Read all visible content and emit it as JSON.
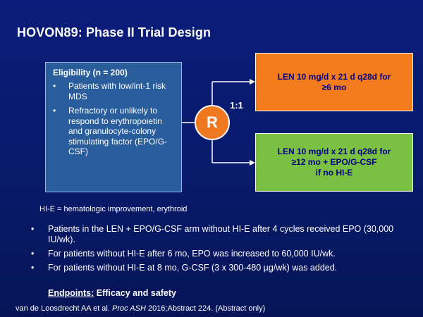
{
  "slide": {
    "title": "HOVON89: Phase II Trial Design",
    "eligibility": {
      "heading": "Eligibility (n = 200)",
      "bullet_char": "•",
      "items": [
        "Patients with low/int-1 risk MDS",
        "Refractory or unlikely to respond to erythropoietin and granulocyte-colony stimulating factor (EPO/G-CSF)"
      ]
    },
    "randomization": {
      "symbol": "R",
      "ratio": "1:1"
    },
    "arms": [
      {
        "lines": [
          "LEN 10 mg/d x 21 d q28d for",
          "≥6 mo"
        ],
        "color": "#f47c1c"
      },
      {
        "lines": [
          "LEN 10 mg/d x 21 d q28d for",
          "≥12 mo + EPO/G-CSF",
          "if no HI-E"
        ],
        "color": "#7ac143"
      }
    ],
    "abbreviation_note": "HI-E = hematologic improvement, erythroid",
    "bullets": [
      "Patients in the LEN + EPO/G-CSF arm without HI-E after 4 cycles received EPO (30,000 IU/wk).",
      "For patients without HI-E after 6 mo, EPO was increased to 60,000 IU/wk.",
      "For patients without HI-E at 8 mo, G-CSF (3 x 300-480 µg/wk) was added."
    ],
    "endpoints": {
      "label": "Endpoints:",
      "value": "Efficacy and safety"
    },
    "citation": {
      "authors": "van de Loosdrecht AA et al.",
      "journal": "Proc ASH",
      "rest": "2016;Abstract 224. (Abstract only)"
    },
    "colors": {
      "background": "#0a1d7a",
      "eligibility_box": "#2a5d9c",
      "randomization": "#f07820",
      "arm_text": "#000080"
    }
  }
}
